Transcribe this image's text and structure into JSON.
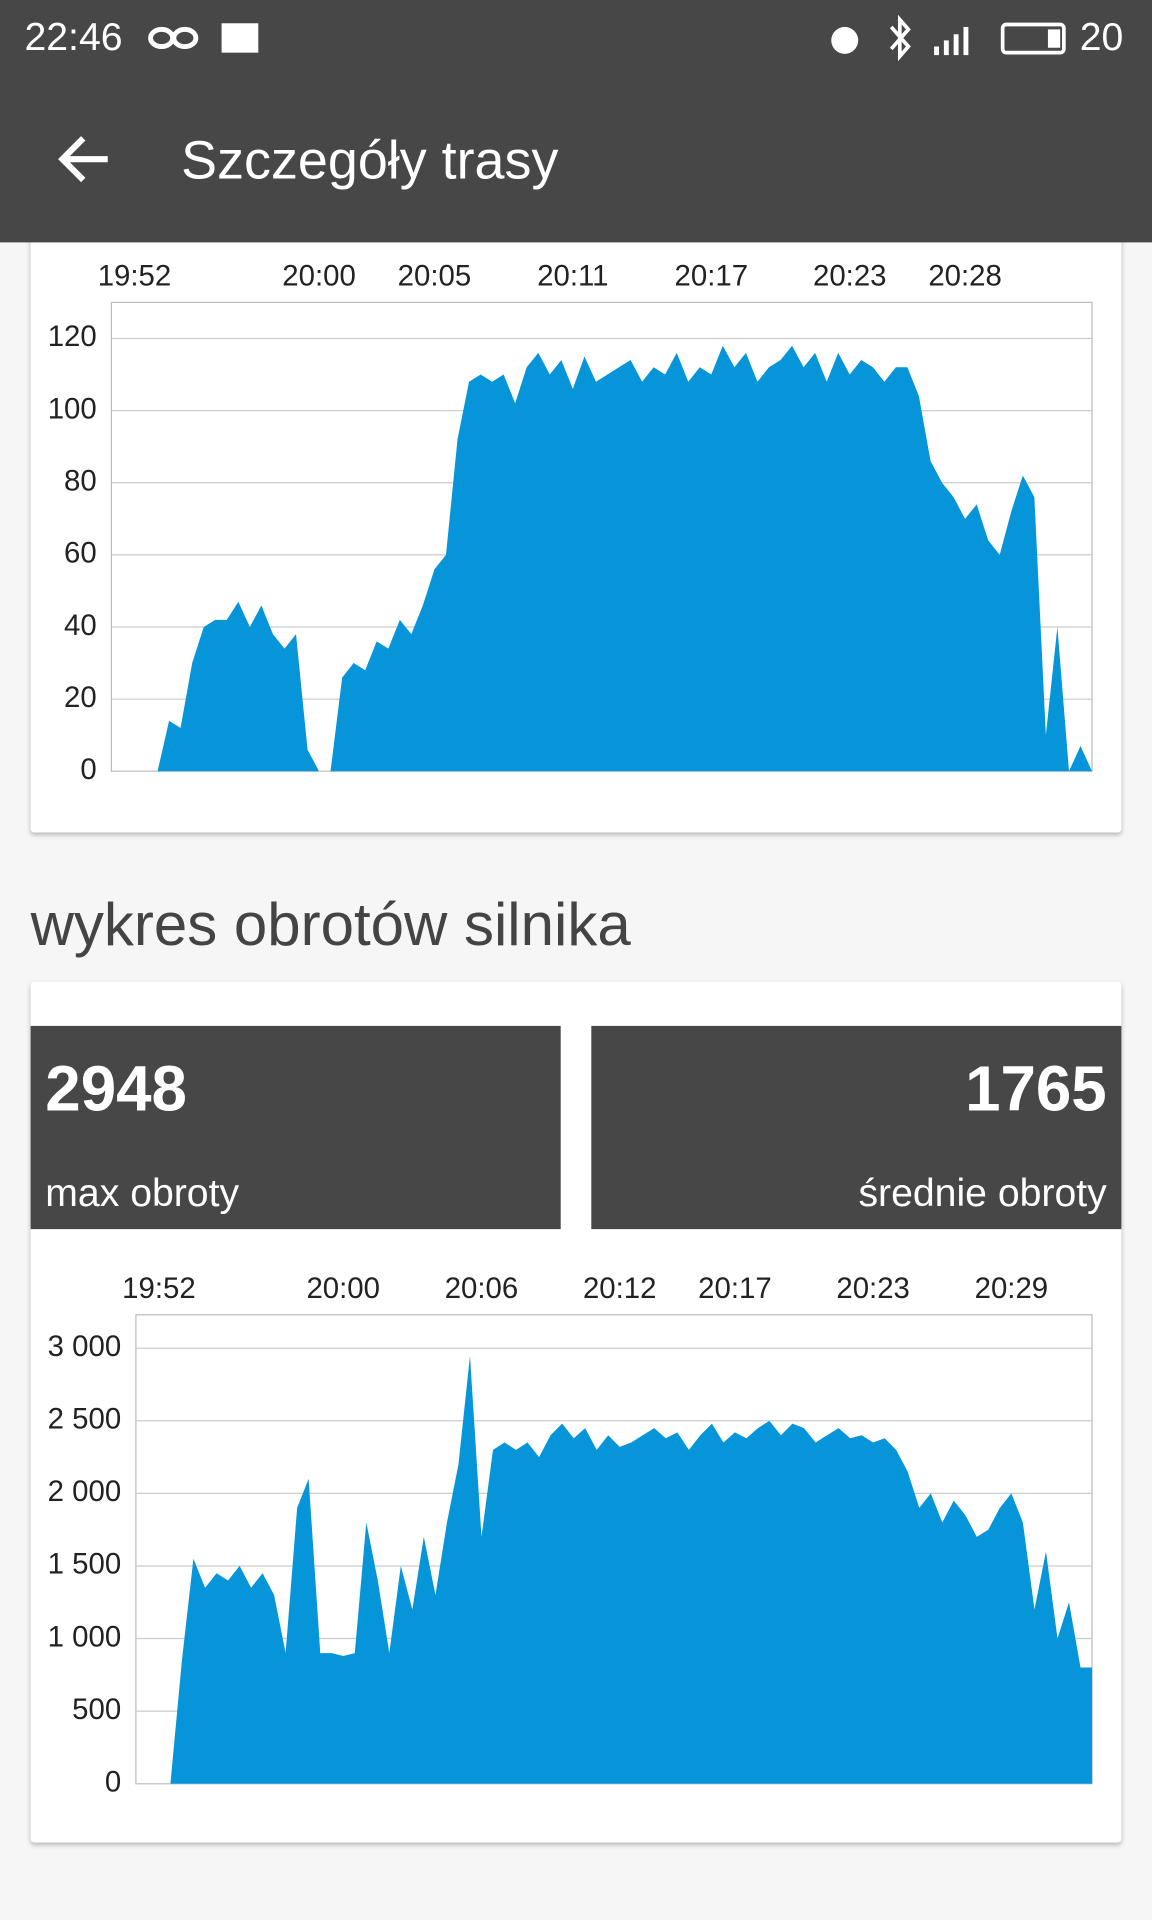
{
  "status_bar": {
    "time": "22:46",
    "battery": "20"
  },
  "app_bar": {
    "title": "Szczegóły trasy"
  },
  "section_title": "wykres obrotów silnika",
  "stats": [
    {
      "value": 2948,
      "label": "max obroty"
    },
    {
      "value": 1765,
      "label": "średnie obroty"
    }
  ],
  "chart_data": [
    {
      "type": "area",
      "color": "#0795d9",
      "grid": true,
      "xlim": [
        1191,
        1233.5
      ],
      "ylim": [
        0,
        130
      ],
      "xticks": [
        {
          "value": 1192,
          "label": "19:52"
        },
        {
          "value": 1200,
          "label": "20:00"
        },
        {
          "value": 1205,
          "label": "20:05"
        },
        {
          "value": 1211,
          "label": "20:11"
        },
        {
          "value": 1217,
          "label": "20:17"
        },
        {
          "value": 1223,
          "label": "20:23"
        },
        {
          "value": 1228,
          "label": "20:28"
        }
      ],
      "yticks": [
        0,
        20,
        40,
        60,
        80,
        100,
        120
      ],
      "x": [
        1191,
        1191.5,
        1192,
        1192.5,
        1193,
        1193.5,
        1194,
        1194.5,
        1195,
        1195.5,
        1196,
        1196.5,
        1197,
        1197.5,
        1198,
        1198.5,
        1199,
        1199.5,
        1200,
        1200.5,
        1201,
        1201.5,
        1202,
        1202.5,
        1203,
        1203.5,
        1204,
        1204.5,
        1205,
        1205.5,
        1206,
        1206.5,
        1207,
        1207.5,
        1208,
        1208.5,
        1209,
        1209.5,
        1210,
        1210.5,
        1211,
        1211.5,
        1212,
        1212.5,
        1213,
        1213.5,
        1214,
        1214.5,
        1215,
        1215.5,
        1216,
        1216.5,
        1217,
        1217.5,
        1218,
        1218.5,
        1219,
        1219.5,
        1220,
        1220.5,
        1221,
        1221.5,
        1222,
        1222.5,
        1223,
        1223.5,
        1224,
        1224.5,
        1225,
        1225.5,
        1226,
        1226.5,
        1227,
        1227.5,
        1228,
        1228.5,
        1229,
        1229.5,
        1230,
        1230.5,
        1231,
        1231.5,
        1232,
        1232.5,
        1233,
        1233.5
      ],
      "values": [
        0,
        0,
        0,
        0,
        0,
        14,
        12,
        30,
        40,
        42,
        42,
        47,
        40,
        46,
        38,
        34,
        38,
        6,
        0,
        0,
        26,
        30,
        28,
        36,
        34,
        42,
        38,
        46,
        56,
        60,
        92,
        108,
        110,
        108,
        110,
        102,
        112,
        116,
        110,
        114,
        106,
        115,
        108,
        110,
        112,
        114,
        108,
        112,
        110,
        116,
        108,
        112,
        110,
        118,
        112,
        116,
        108,
        112,
        114,
        118,
        112,
        116,
        108,
        116,
        110,
        114,
        112,
        108,
        112,
        112,
        104,
        86,
        80,
        76,
        70,
        74,
        64,
        60,
        72,
        82,
        76,
        10,
        40,
        0,
        7,
        0
      ]
    },
    {
      "type": "area",
      "color": "#0795d9",
      "grid": true,
      "xlim": [
        1191,
        1232.5
      ],
      "ylim": [
        0,
        3230
      ],
      "xticks": [
        {
          "value": 1192,
          "label": "19:52"
        },
        {
          "value": 1200,
          "label": "20:00"
        },
        {
          "value": 1206,
          "label": "20:06"
        },
        {
          "value": 1212,
          "label": "20:12"
        },
        {
          "value": 1217,
          "label": "20:17"
        },
        {
          "value": 1223,
          "label": "20:23"
        },
        {
          "value": 1229,
          "label": "20:29"
        }
      ],
      "yticks": [
        0,
        500,
        {
          "value": 1000,
          "label": "1 000"
        },
        {
          "value": 1500,
          "label": "1 500"
        },
        {
          "value": 2000,
          "label": "2 000"
        },
        {
          "value": 2500,
          "label": "2 500"
        },
        {
          "value": 3000,
          "label": "3 000"
        }
      ],
      "x": [
        1191,
        1191.5,
        1192,
        1192.5,
        1193,
        1193.5,
        1194,
        1194.5,
        1195,
        1195.5,
        1196,
        1196.5,
        1197,
        1197.5,
        1198,
        1198.5,
        1199,
        1199.5,
        1200,
        1200.5,
        1201,
        1201.5,
        1202,
        1202.5,
        1203,
        1203.5,
        1204,
        1204.5,
        1205,
        1205.5,
        1206,
        1206.5,
        1207,
        1207.5,
        1208,
        1208.5,
        1209,
        1209.5,
        1210,
        1210.5,
        1211,
        1211.5,
        1212,
        1212.5,
        1213,
        1213.5,
        1214,
        1214.5,
        1215,
        1215.5,
        1216,
        1216.5,
        1217,
        1217.5,
        1218,
        1218.5,
        1219,
        1219.5,
        1220,
        1220.5,
        1221,
        1221.5,
        1222,
        1222.5,
        1223,
        1223.5,
        1224,
        1224.5,
        1225,
        1225.5,
        1226,
        1226.5,
        1227,
        1227.5,
        1228,
        1228.5,
        1229,
        1229.5,
        1230,
        1230.5,
        1231,
        1231.5,
        1232,
        1232.5
      ],
      "values": [
        0,
        0,
        0,
        0,
        850,
        1550,
        1350,
        1450,
        1400,
        1500,
        1350,
        1450,
        1300,
        900,
        1900,
        2100,
        900,
        900,
        880,
        900,
        1800,
        1400,
        900,
        1500,
        1200,
        1700,
        1300,
        1800,
        2200,
        2948,
        1700,
        2300,
        2350,
        2300,
        2350,
        2250,
        2400,
        2480,
        2380,
        2450,
        2300,
        2400,
        2320,
        2350,
        2400,
        2450,
        2380,
        2420,
        2300,
        2400,
        2480,
        2350,
        2420,
        2380,
        2450,
        2500,
        2400,
        2480,
        2450,
        2350,
        2400,
        2450,
        2380,
        2400,
        2350,
        2380,
        2300,
        2150,
        1900,
        2000,
        1800,
        1950,
        1850,
        1700,
        1750,
        1900,
        2000,
        1800,
        1200,
        1600,
        1000,
        1250,
        800,
        800
      ]
    }
  ]
}
